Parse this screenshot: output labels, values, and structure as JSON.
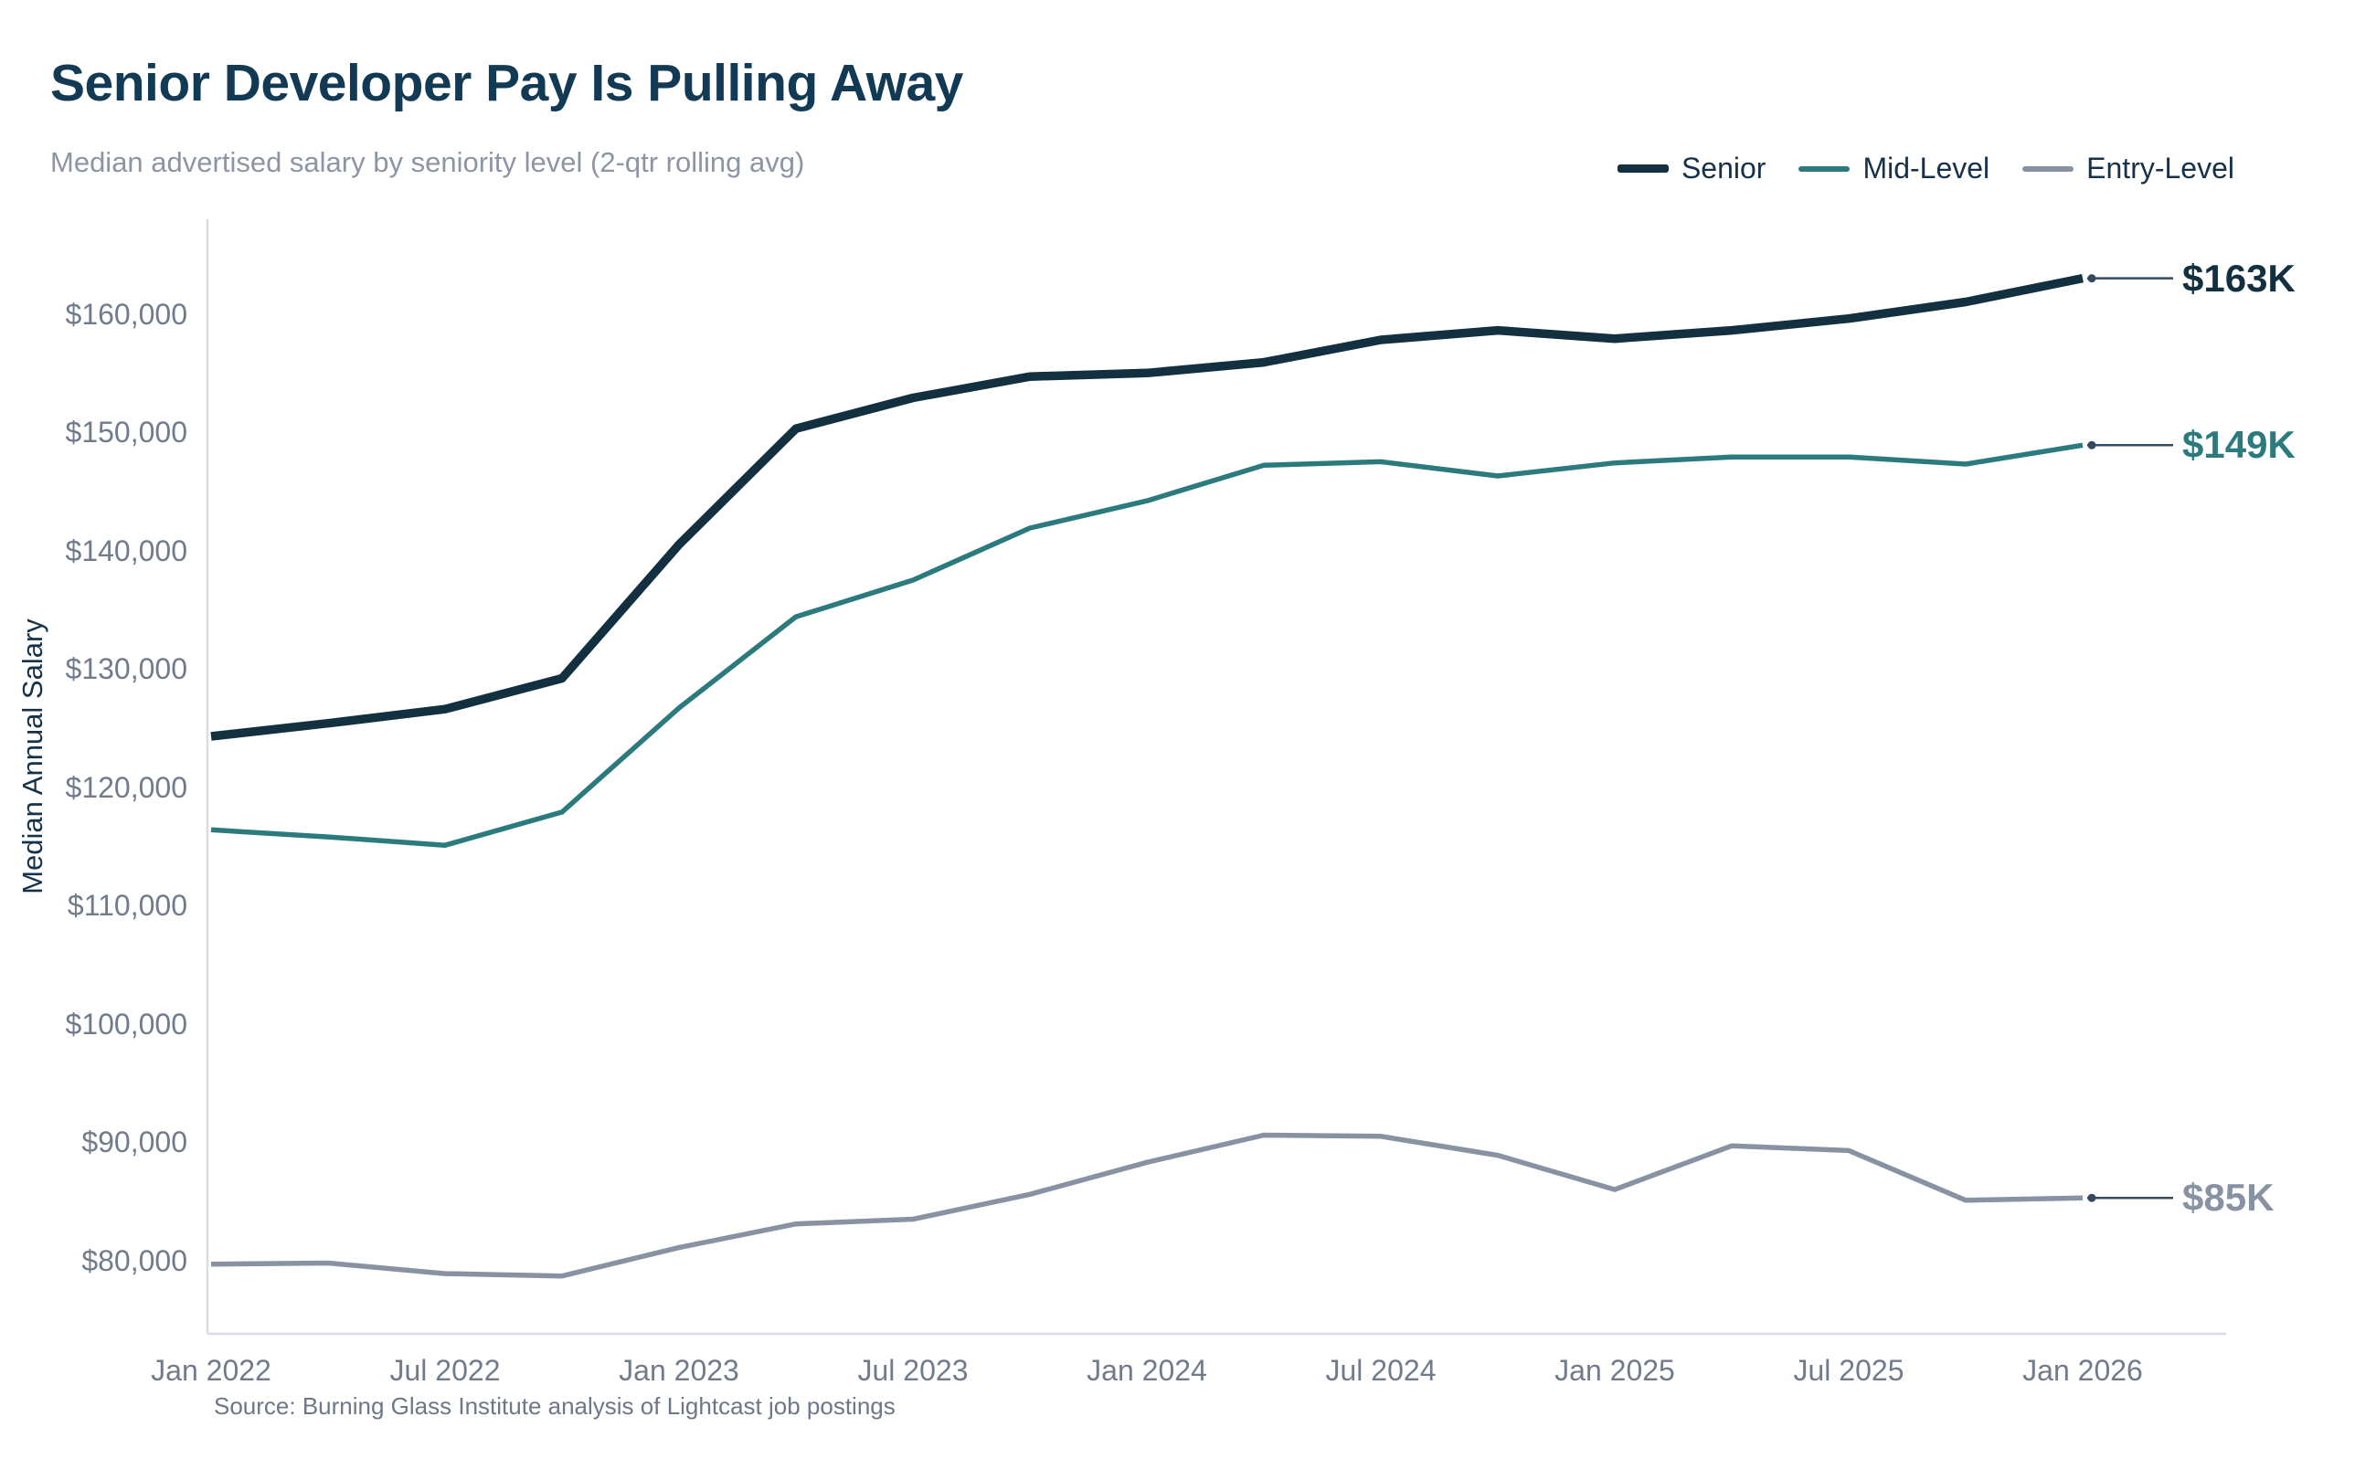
{
  "header": {
    "title": "Senior Developer Pay Is Pulling Away",
    "subtitle": "Median advertised salary by seniority level (2-qtr rolling avg)"
  },
  "legend": {
    "items": [
      {
        "label": "Senior",
        "color": "#12303f",
        "thickness": 9
      },
      {
        "label": "Mid-Level",
        "color": "#2b7a7d",
        "thickness": 6
      },
      {
        "label": "Entry-Level",
        "color": "#8792a2",
        "thickness": 6
      }
    ]
  },
  "y_axis": {
    "title": "Median Annual Salary",
    "ticks": [
      {
        "label": "$160,000",
        "value": 160000
      },
      {
        "label": "$150,000",
        "value": 150000
      },
      {
        "label": "$140,000",
        "value": 140000
      },
      {
        "label": "$130,000",
        "value": 130000
      },
      {
        "label": "$120,000",
        "value": 120000
      },
      {
        "label": "$110,000",
        "value": 110000
      },
      {
        "label": "$100,000",
        "value": 100000
      },
      {
        "label": "$90,000",
        "value": 90000
      },
      {
        "label": "$80,000",
        "value": 80000
      }
    ]
  },
  "x_axis": {
    "ticks": [
      {
        "label": "Jan 2022",
        "index": 0
      },
      {
        "label": "Jul 2022",
        "index": 2
      },
      {
        "label": "Jan 2023",
        "index": 4
      },
      {
        "label": "Jul 2023",
        "index": 6
      },
      {
        "label": "Jan 2024",
        "index": 8
      },
      {
        "label": "Jul 2024",
        "index": 10
      },
      {
        "label": "Jan 2025",
        "index": 12
      },
      {
        "label": "Jul 2025",
        "index": 14
      },
      {
        "label": "Jan 2026",
        "index": 16
      }
    ]
  },
  "series": [
    {
      "name": "Senior",
      "color": "#12303f",
      "stroke_width": 9.5,
      "end_label": "$163K",
      "values": [
        124300,
        125400,
        126600,
        129200,
        140500,
        150300,
        152900,
        154700,
        155000,
        155900,
        157800,
        158600,
        157900,
        158600,
        159600,
        161000,
        163000
      ]
    },
    {
      "name": "Mid-Level",
      "color": "#2b7a7d",
      "stroke_width": 5.5,
      "end_label": "$149K",
      "values": [
        116400,
        115800,
        115100,
        117900,
        126700,
        134400,
        137500,
        141900,
        144200,
        147200,
        147500,
        146300,
        147400,
        147900,
        147900,
        147300,
        148900
      ]
    },
    {
      "name": "Entry-Level",
      "color": "#8792a2",
      "stroke_width": 5.5,
      "end_label": "$85K",
      "values": [
        79700,
        79800,
        78900,
        78700,
        81100,
        83100,
        83500,
        85600,
        88300,
        90600,
        90500,
        88900,
        86000,
        89700,
        89300,
        85100,
        85300
      ]
    }
  ],
  "source": "Source: Burning Glass Institute analysis of Lightcast job postings",
  "chart_data": {
    "type": "line",
    "title": "Senior Developer Pay Is Pulling Away",
    "subtitle": "Median advertised salary by seniority level (2-qtr rolling avg)",
    "xlabel": "",
    "ylabel": "Median Annual Salary",
    "x": [
      "Jan 2022",
      "Apr 2022",
      "Jul 2022",
      "Oct 2022",
      "Jan 2023",
      "Apr 2023",
      "Jul 2023",
      "Oct 2023",
      "Jan 2024",
      "Apr 2024",
      "Jul 2024",
      "Oct 2024",
      "Jan 2025",
      "Apr 2025",
      "Jul 2025",
      "Oct 2025",
      "Jan 2026"
    ],
    "series": [
      {
        "name": "Senior",
        "values": [
          124300,
          125400,
          126600,
          129200,
          140500,
          150300,
          152900,
          154700,
          155000,
          155900,
          157800,
          158600,
          157900,
          158600,
          159600,
          161000,
          163000
        ],
        "color": "#12303f",
        "end_annotation": "$163K"
      },
      {
        "name": "Mid-Level",
        "values": [
          116400,
          115800,
          115100,
          117900,
          126700,
          134400,
          137500,
          141900,
          144200,
          147200,
          147500,
          146300,
          147400,
          147900,
          147900,
          147300,
          148900
        ],
        "color": "#2b7a7d",
        "end_annotation": "$149K"
      },
      {
        "name": "Entry-Level",
        "values": [
          79700,
          79800,
          78900,
          78700,
          81100,
          83100,
          83500,
          85600,
          88300,
          90600,
          90500,
          88900,
          86000,
          89700,
          89300,
          85100,
          85300
        ],
        "color": "#8792a2",
        "end_annotation": "$85K"
      }
    ],
    "ylim": [
      75000,
      167000
    ],
    "y_tick_step": 10000,
    "grid": false,
    "legend_position": "top-right",
    "source": "Source: Burning Glass Institute analysis of Lightcast job postings"
  }
}
